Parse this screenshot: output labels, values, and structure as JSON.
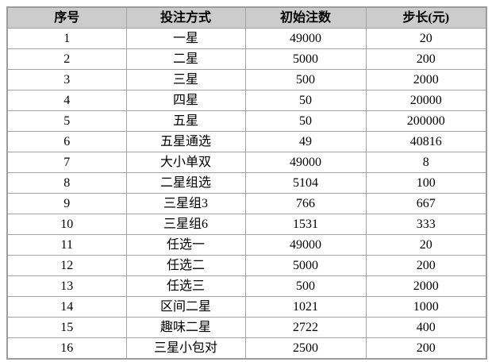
{
  "table": {
    "column_keys": [
      "index",
      "bet-type",
      "initial-bets",
      "step"
    ],
    "headers": [
      "序号",
      "投注方式",
      "初始注数",
      "步长(元)"
    ],
    "rows": [
      [
        "1",
        "一星",
        "49000",
        "20"
      ],
      [
        "2",
        "二星",
        "5000",
        "200"
      ],
      [
        "3",
        "三星",
        "500",
        "2000"
      ],
      [
        "4",
        "四星",
        "50",
        "20000"
      ],
      [
        "5",
        "五星",
        "50",
        "200000"
      ],
      [
        "6",
        "五星通选",
        "49",
        "40816"
      ],
      [
        "7",
        "大小单双",
        "49000",
        "8"
      ],
      [
        "8",
        "二星组选",
        "5104",
        "100"
      ],
      [
        "9",
        "三星组3",
        "766",
        "667"
      ],
      [
        "10",
        "三星组6",
        "1531",
        "333"
      ],
      [
        "11",
        "任选一",
        "49000",
        "20"
      ],
      [
        "12",
        "任选二",
        "5000",
        "200"
      ],
      [
        "13",
        "任选三",
        "500",
        "2000"
      ],
      [
        "14",
        "区间二星",
        "1021",
        "1000"
      ],
      [
        "15",
        "趣味二星",
        "2722",
        "400"
      ],
      [
        "16",
        "三星小包对",
        "2500",
        "200"
      ]
    ],
    "colors": {
      "header_bg": "#cccccc",
      "border": "#a3a3a3",
      "outer_border": "#9c9c9c",
      "text": "#000000",
      "row_bg": "#ffffff"
    }
  }
}
